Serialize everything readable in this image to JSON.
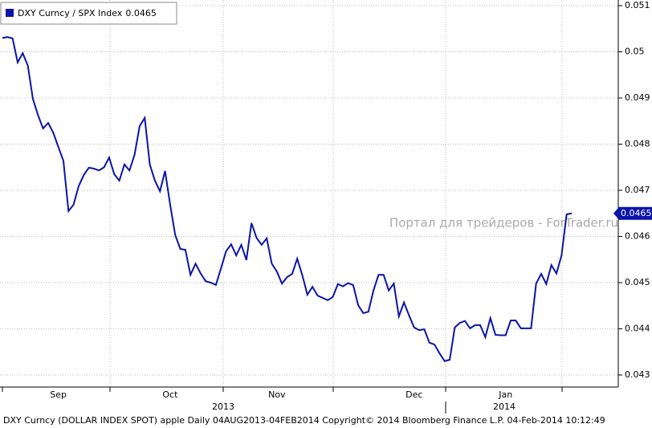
{
  "chart_data": {
    "type": "line",
    "series": [
      {
        "name": "DXY Curncy / SPX Index",
        "color": "#0a14a8",
        "values": [
          0.0503,
          0.05032,
          0.05029,
          0.04977,
          0.04997,
          0.0497,
          0.04898,
          0.04863,
          0.04834,
          0.04846,
          0.04825,
          0.04794,
          0.04764,
          0.04655,
          0.04669,
          0.04709,
          0.04733,
          0.04749,
          0.04747,
          0.04743,
          0.0475,
          0.04771,
          0.04735,
          0.04721,
          0.04756,
          0.04743,
          0.04777,
          0.04839,
          0.04857,
          0.04756,
          0.04721,
          0.04698,
          0.04742,
          0.04669,
          0.04603,
          0.04573,
          0.04571,
          0.04517,
          0.04541,
          0.0452,
          0.04503,
          0.045,
          0.04495,
          0.04531,
          0.04568,
          0.04583,
          0.04559,
          0.04582,
          0.04549,
          0.04629,
          0.04597,
          0.04582,
          0.04596,
          0.04541,
          0.04524,
          0.04498,
          0.04512,
          0.04519,
          0.04552,
          0.04516,
          0.04474,
          0.04491,
          0.04472,
          0.04467,
          0.04462,
          0.04469,
          0.04497,
          0.04492,
          0.04499,
          0.04495,
          0.04451,
          0.04434,
          0.04437,
          0.04483,
          0.04517,
          0.04517,
          0.04483,
          0.04498,
          0.04427,
          0.04457,
          0.04429,
          0.04403,
          0.04397,
          0.04399,
          0.0437,
          0.04366,
          0.04347,
          0.0433,
          0.04333,
          0.04403,
          0.04413,
          0.04417,
          0.04401,
          0.04408,
          0.04408,
          0.04382,
          0.04423,
          0.04387,
          0.04386,
          0.04386,
          0.04418,
          0.04418,
          0.04401,
          0.04401,
          0.04401,
          0.04498,
          0.04519,
          0.04497,
          0.04538,
          0.0452,
          0.04559,
          0.04648,
          0.0465
        ]
      }
    ],
    "categories": [
      null,
      null,
      null,
      null,
      null,
      null,
      null,
      null,
      null,
      null,
      null,
      "Sep",
      null,
      null,
      null,
      null,
      null,
      null,
      null,
      null,
      null,
      null,
      null,
      null,
      null,
      null,
      null,
      null,
      null,
      null,
      null,
      null,
      null,
      "Oct",
      null,
      null,
      null,
      null,
      null,
      null,
      null,
      null,
      null,
      null,
      null,
      null,
      null,
      null,
      null,
      null,
      null,
      null,
      null,
      null,
      "Nov",
      null,
      null,
      null,
      null,
      null,
      null,
      null,
      null,
      null,
      null,
      null,
      null,
      null,
      null,
      null,
      null,
      null,
      null,
      null,
      null,
      null,
      null,
      null,
      null,
      null,
      null,
      "Dec",
      null,
      null,
      null,
      null,
      null,
      null,
      null,
      null,
      null,
      null,
      null,
      null,
      null,
      null,
      null,
      null,
      null,
      "Jan",
      null,
      null,
      null,
      null,
      null,
      null,
      null,
      null,
      null,
      null,
      null,
      null,
      null
    ],
    "year_labels": [
      "2013",
      "2014"
    ],
    "ylim": [
      0.043,
      0.051
    ],
    "yticks": [
      0.043,
      0.044,
      0.045,
      0.046,
      0.047,
      0.048,
      0.049,
      0.05,
      0.051
    ],
    "grid": true,
    "watermark": "Портал для трейдеров - ForTrader.ru",
    "footer": "DXY Curncy (DOLLAR INDEX SPOT) apple  Daily 04AUG2013-04FEB2014  Copyright© 2014 Bloomberg Finance L.P.  04-Feb-2014 10:12:49"
  }
}
